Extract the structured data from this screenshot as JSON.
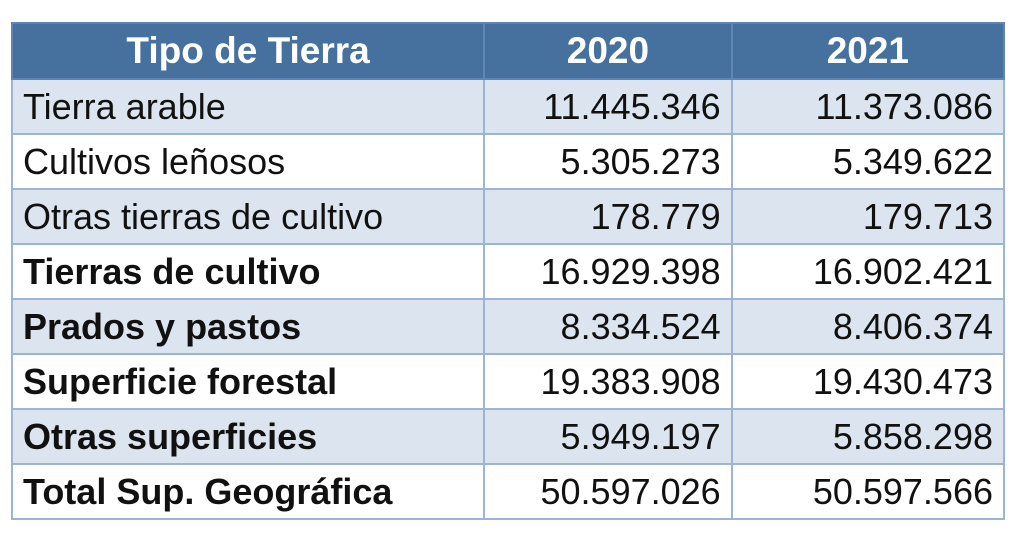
{
  "table": {
    "headers": [
      "Tipo de Tierra",
      "2020",
      "2021"
    ],
    "rows": [
      {
        "label": "Tierra arable",
        "v2020": "11.445.346",
        "v2021": "11.373.086",
        "bold": false
      },
      {
        "label": "Cultivos leñosos",
        "v2020": "5.305.273",
        "v2021": "5.349.622",
        "bold": false
      },
      {
        "label": "Otras tierras de cultivo",
        "v2020": "178.779",
        "v2021": "179.713",
        "bold": false
      },
      {
        "label": "Tierras de cultivo",
        "v2020": "16.929.398",
        "v2021": "16.902.421",
        "bold": true
      },
      {
        "label": "Prados y pastos",
        "v2020": "8.334.524",
        "v2021": "8.406.374",
        "bold": true
      },
      {
        "label": "Superficie forestal",
        "v2020": "19.383.908",
        "v2021": "19.430.473",
        "bold": true
      },
      {
        "label": "Otras superficies",
        "v2020": "5.949.197",
        "v2021": "5.858.298",
        "bold": true
      },
      {
        "label": "Total Sup. Geográfica",
        "v2020": "50.597.026",
        "v2021": "50.597.566",
        "bold": true
      }
    ]
  },
  "colors": {
    "header": "#46709e",
    "alt_row": "#dbe4ef",
    "border": "#9bb5d3"
  }
}
